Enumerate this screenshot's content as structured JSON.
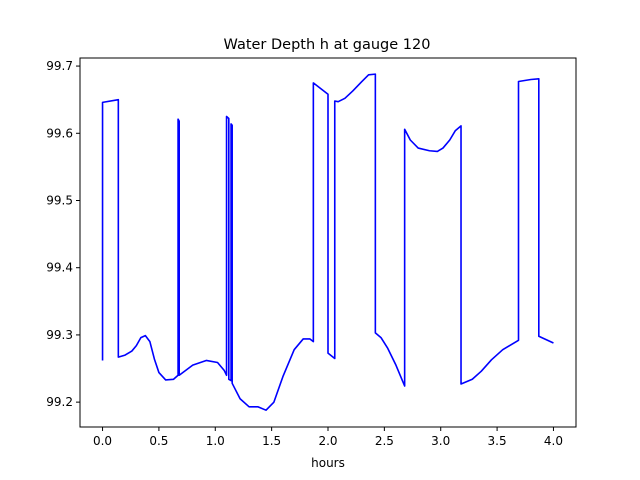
{
  "chart_data": {
    "type": "line",
    "title": "Water Depth h at gauge 120",
    "xlabel": "hours",
    "ylabel": "",
    "xlim": [
      -0.2,
      4.2
    ],
    "ylim": [
      99.163,
      99.712
    ],
    "xticks": [
      0.0,
      0.5,
      1.0,
      1.5,
      2.0,
      2.5,
      3.0,
      3.5,
      4.0
    ],
    "xtick_labels": [
      "0.0",
      "0.5",
      "1.0",
      "1.5",
      "2.0",
      "2.5",
      "3.0",
      "3.5",
      "4.0"
    ],
    "yticks": [
      99.2,
      99.3,
      99.4,
      99.5,
      99.6,
      99.7
    ],
    "ytick_labels": [
      "99.2",
      "99.3",
      "99.4",
      "99.5",
      "99.6",
      "99.7"
    ],
    "grid": false,
    "series": [
      {
        "color": "#0000ff",
        "points": [
          [
            0.0,
            99.262
          ],
          [
            0.0,
            99.646
          ],
          [
            0.14,
            99.65
          ],
          [
            0.14,
            99.267
          ],
          [
            0.2,
            99.27
          ],
          [
            0.26,
            99.276
          ],
          [
            0.3,
            99.284
          ],
          [
            0.34,
            99.296
          ],
          [
            0.38,
            99.299
          ],
          [
            0.42,
            99.29
          ],
          [
            0.46,
            99.264
          ],
          [
            0.5,
            99.244
          ],
          [
            0.56,
            99.233
          ],
          [
            0.63,
            99.234
          ],
          [
            0.67,
            99.24
          ],
          [
            0.67,
            99.621
          ],
          [
            0.68,
            99.618
          ],
          [
            0.68,
            99.24
          ],
          [
            0.8,
            99.255
          ],
          [
            0.92,
            99.262
          ],
          [
            1.02,
            99.259
          ],
          [
            1.08,
            99.247
          ],
          [
            1.1,
            99.24
          ],
          [
            1.1,
            99.625
          ],
          [
            1.12,
            99.622
          ],
          [
            1.12,
            99.234
          ],
          [
            1.14,
            99.232
          ],
          [
            1.14,
            99.614
          ],
          [
            1.15,
            99.612
          ],
          [
            1.15,
            99.228
          ],
          [
            1.22,
            99.205
          ],
          [
            1.3,
            99.193
          ],
          [
            1.38,
            99.193
          ],
          [
            1.45,
            99.188
          ],
          [
            1.52,
            99.2
          ],
          [
            1.6,
            99.238
          ],
          [
            1.7,
            99.278
          ],
          [
            1.78,
            99.294
          ],
          [
            1.84,
            99.294
          ],
          [
            1.87,
            99.29
          ],
          [
            1.87,
            99.675
          ],
          [
            2.0,
            99.658
          ],
          [
            2.0,
            99.273
          ],
          [
            2.06,
            99.265
          ],
          [
            2.06,
            99.648
          ],
          [
            2.09,
            99.647
          ],
          [
            2.15,
            99.652
          ],
          [
            2.22,
            99.663
          ],
          [
            2.3,
            99.677
          ],
          [
            2.36,
            99.687
          ],
          [
            2.42,
            99.688
          ],
          [
            2.42,
            99.303
          ],
          [
            2.47,
            99.296
          ],
          [
            2.53,
            99.28
          ],
          [
            2.6,
            99.256
          ],
          [
            2.68,
            99.224
          ],
          [
            2.68,
            99.606
          ],
          [
            2.73,
            99.59
          ],
          [
            2.8,
            99.578
          ],
          [
            2.9,
            99.574
          ],
          [
            2.97,
            99.573
          ],
          [
            3.02,
            99.578
          ],
          [
            3.08,
            99.59
          ],
          [
            3.13,
            99.604
          ],
          [
            3.18,
            99.611
          ],
          [
            3.18,
            99.227
          ],
          [
            3.28,
            99.234
          ],
          [
            3.36,
            99.246
          ],
          [
            3.45,
            99.263
          ],
          [
            3.55,
            99.278
          ],
          [
            3.69,
            99.292
          ],
          [
            3.69,
            99.677
          ],
          [
            3.8,
            99.68
          ],
          [
            3.87,
            99.681
          ],
          [
            3.87,
            99.298
          ],
          [
            4.0,
            99.288
          ]
        ]
      }
    ]
  }
}
